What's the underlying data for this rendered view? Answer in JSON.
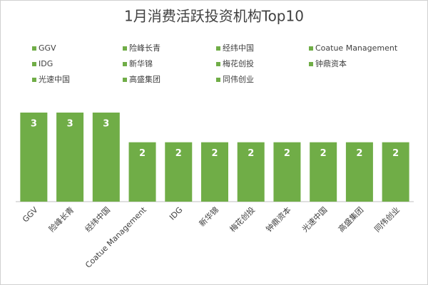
{
  "chart_data": {
    "type": "bar",
    "title": "1月消费活跃投资机构Top10",
    "categories": [
      "GGV",
      "险峰长青",
      "经纬中国",
      "Coatue Management",
      "IDG",
      "新华锦",
      "梅花创投",
      "钟鼎资本",
      "光速中国",
      "高盛集团",
      "同伟创业"
    ],
    "values": [
      3,
      3,
      3,
      2,
      2,
      2,
      2,
      2,
      2,
      2,
      2
    ],
    "color": "#70ad47"
  }
}
